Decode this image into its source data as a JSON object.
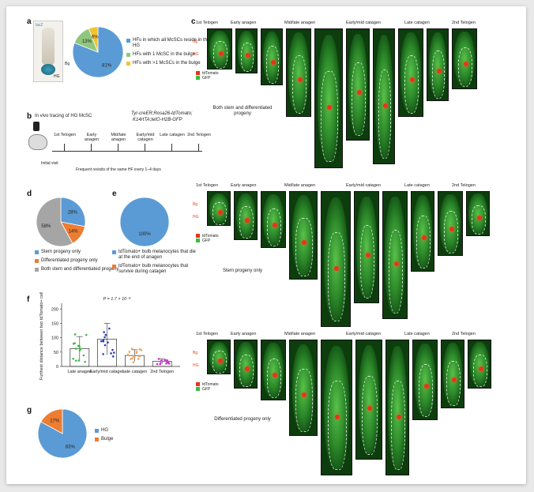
{
  "panels": {
    "a": {
      "label": "a",
      "photo_labels": {
        "lac": "lacZ",
        "bg": "Bg",
        "hg": "HG"
      },
      "chart_data": {
        "type": "pie",
        "categories": [
          "HFs in which all McSCs reside in the HG",
          "HFs with 1 McSC in the bulge",
          "HFs with >1 McSCs in the bulge"
        ],
        "values": [
          81,
          13,
          6
        ],
        "value_labels": [
          "81%",
          "13%",
          "6%"
        ],
        "colors": [
          "#5b9bd5",
          "#8fc77c",
          "#f2c233"
        ]
      }
    },
    "b": {
      "label": "b",
      "title": "In vivo tracing of HG McSC",
      "genotype_line1": "Tyr-creER;Rosa26-tdTomato;",
      "genotype_line2": "K14rtTA;tetO-H2B-GFP",
      "stages": [
        "1st Telogen",
        "Early anagen",
        "Mid/late anagen",
        "Early/mid catagen",
        "Late catagen",
        "2nd Telogen"
      ],
      "initial_visit": "Initial visit",
      "revisits": "Frequent revisits of the same HF every 1–4 days"
    },
    "c": {
      "label": "c",
      "stage_headers": [
        "1st Telogen",
        "Early anagen",
        "Mid/late anagen",
        "Early/mid catagen",
        "Late catagen",
        "2nd Telogen"
      ],
      "legend": {
        "red": "tdTomato",
        "green": "GFP"
      },
      "markers": {
        "bg": "Bg",
        "hg": "HG"
      },
      "row_captions": [
        "Both stem and differentiated progeny",
        "Stem progeny only",
        "Differentiated progeny only"
      ]
    },
    "d": {
      "label": "d",
      "chart_data": {
        "type": "pie",
        "categories": [
          "Stem progeny only",
          "Differentiated progeny only",
          "Both stem and differentiated progeny"
        ],
        "values": [
          28,
          14,
          58
        ],
        "value_labels": [
          "28%",
          "14%",
          "58%"
        ],
        "colors": [
          "#5b9bd5",
          "#ed7d31",
          "#a5a5a5"
        ]
      }
    },
    "e": {
      "label": "e",
      "chart_data": {
        "type": "pie",
        "categories": [
          "tdTomato+ bulb melanocytes that die at the end of anagen",
          "tdTomato+ bulb melanocytes that survive during catagen"
        ],
        "values": [
          100,
          0
        ],
        "value_labels": [
          "100%"
        ],
        "colors": [
          "#5b9bd5",
          "#ed7d31"
        ]
      }
    },
    "f": {
      "label": "f",
      "chart_data": {
        "type": "bar",
        "categories": [
          "Late anagen",
          "Early/mid catagen",
          "Late catagen",
          "2nd Telogen"
        ],
        "values": [
          62,
          95,
          38,
          18
        ],
        "errors": [
          42,
          55,
          20,
          8
        ],
        "colors": [
          "#3dbb3d",
          "#2a3fb3",
          "#f2a35a",
          "#c83cc8"
        ],
        "ylabel": "Furthest distance between two tdTomato+ cells",
        "ylim": [
          0,
          220
        ],
        "yticks": [
          0,
          50,
          100,
          150,
          200
        ],
        "pvalue": "P = 1.7 × 10⁻⁸"
      }
    },
    "g": {
      "label": "g",
      "chart_data": {
        "type": "pie",
        "categories": [
          "HG",
          "Bulge"
        ],
        "values": [
          83,
          17
        ],
        "value_labels": [
          "83%",
          "17%"
        ],
        "colors": [
          "#5b9bd5",
          "#ed7d31"
        ]
      }
    }
  }
}
